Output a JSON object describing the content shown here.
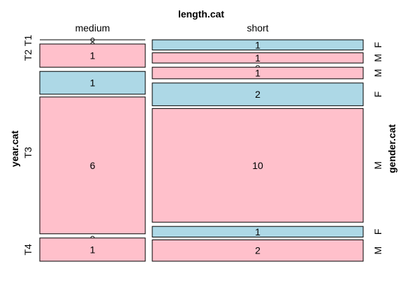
{
  "chart_data": {
    "type": "mosaic",
    "title": "length.cat",
    "xlabel": "length.cat",
    "ylabel": "year.cat",
    "zlabel": "gender.cat",
    "columns": [
      "medium",
      "short"
    ],
    "rows": [
      "T1",
      "T2",
      "T3",
      "T4"
    ],
    "genders": [
      "F",
      "M"
    ],
    "colors": {
      "F": "#add8e6",
      "M": "#ffc0cb"
    },
    "cells": [
      {
        "column": "medium",
        "row": "T1",
        "gender": "F",
        "count": 0
      },
      {
        "column": "medium",
        "row": "T1",
        "gender": "M",
        "count": 0
      },
      {
        "column": "medium",
        "row": "T2",
        "gender": "F",
        "count": 0
      },
      {
        "column": "medium",
        "row": "T2",
        "gender": "M",
        "count": 1
      },
      {
        "column": "medium",
        "row": "T3",
        "gender": "F",
        "count": 1
      },
      {
        "column": "medium",
        "row": "T3",
        "gender": "M",
        "count": 6
      },
      {
        "column": "medium",
        "row": "T4",
        "gender": "F",
        "count": 0
      },
      {
        "column": "medium",
        "row": "T4",
        "gender": "M",
        "count": 1
      },
      {
        "column": "short",
        "row": "T1",
        "gender": "F",
        "count": 1
      },
      {
        "column": "short",
        "row": "T1",
        "gender": "M",
        "count": 1
      },
      {
        "column": "short",
        "row": "T2",
        "gender": "F",
        "count": 0
      },
      {
        "column": "short",
        "row": "T2",
        "gender": "M",
        "count": 1
      },
      {
        "column": "short",
        "row": "T3",
        "gender": "F",
        "count": 2
      },
      {
        "column": "short",
        "row": "T3",
        "gender": "M",
        "count": 10
      },
      {
        "column": "short",
        "row": "T4",
        "gender": "F",
        "count": 1
      },
      {
        "column": "short",
        "row": "T4",
        "gender": "M",
        "count": 2
      }
    ]
  }
}
